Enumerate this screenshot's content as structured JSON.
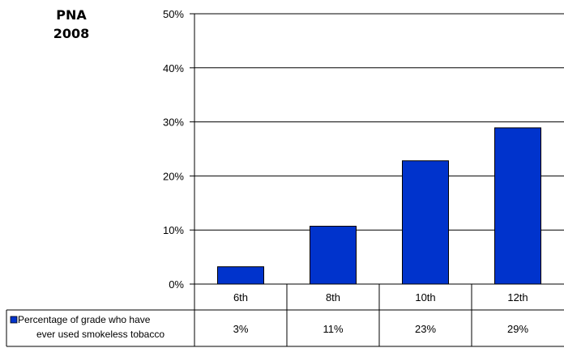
{
  "chart_data": {
    "type": "bar",
    "title_lines": [
      "PNA",
      "2008"
    ],
    "categories": [
      "6th",
      "8th",
      "10th",
      "12th"
    ],
    "series": [
      {
        "name_lines": [
          "Percentage of grade who have",
          "ever used smokeless tobacco"
        ],
        "values": [
          3.2,
          10.7,
          22.8,
          28.9
        ],
        "value_labels": [
          "3%",
          "11%",
          "23%",
          "29%"
        ],
        "color": "#0033CC"
      }
    ],
    "ylim": [
      0,
      50
    ],
    "yticks": [
      0,
      10,
      20,
      30,
      40,
      50
    ],
    "ytick_labels": [
      "0%",
      "10%",
      "20%",
      "30%",
      "40%",
      "50%"
    ],
    "grid": true,
    "legend_placement": "data-table-left"
  }
}
